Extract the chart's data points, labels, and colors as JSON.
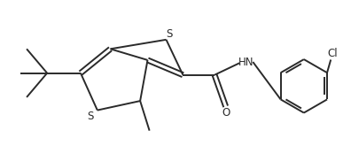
{
  "bg_color": "#ffffff",
  "line_color": "#2a2a2a",
  "line_width": 1.4,
  "text_color": "#2a2a2a",
  "font_size": 8.5,
  "label_S1": "S",
  "label_S2": "S",
  "label_HN": "HN",
  "label_O": "O",
  "label_Cl": "Cl"
}
